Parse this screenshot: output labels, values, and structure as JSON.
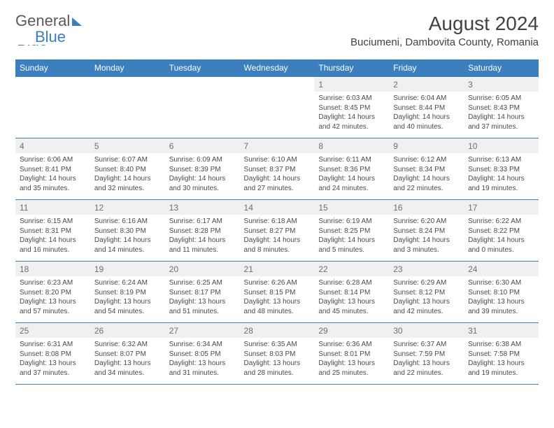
{
  "logo": {
    "part1": "General",
    "part2": "Blue"
  },
  "header": {
    "month_title": "August 2024",
    "location": "Buciumeni, Dambovita County, Romania"
  },
  "colors": {
    "accent": "#3b7fbf",
    "header_text": "#ffffff",
    "daynum_bg": "#f0f0f0",
    "daynum_text": "#6f6f6f",
    "body_text": "#4a4a4a",
    "border": "#3b7fbf"
  },
  "weekdays": [
    "Sunday",
    "Monday",
    "Tuesday",
    "Wednesday",
    "Thursday",
    "Friday",
    "Saturday"
  ],
  "weeks": [
    [
      null,
      null,
      null,
      null,
      {
        "num": "1",
        "sunrise": "Sunrise: 6:03 AM",
        "sunset": "Sunset: 8:45 PM",
        "daylight": "Daylight: 14 hours and 42 minutes."
      },
      {
        "num": "2",
        "sunrise": "Sunrise: 6:04 AM",
        "sunset": "Sunset: 8:44 PM",
        "daylight": "Daylight: 14 hours and 40 minutes."
      },
      {
        "num": "3",
        "sunrise": "Sunrise: 6:05 AM",
        "sunset": "Sunset: 8:43 PM",
        "daylight": "Daylight: 14 hours and 37 minutes."
      }
    ],
    [
      {
        "num": "4",
        "sunrise": "Sunrise: 6:06 AM",
        "sunset": "Sunset: 8:41 PM",
        "daylight": "Daylight: 14 hours and 35 minutes."
      },
      {
        "num": "5",
        "sunrise": "Sunrise: 6:07 AM",
        "sunset": "Sunset: 8:40 PM",
        "daylight": "Daylight: 14 hours and 32 minutes."
      },
      {
        "num": "6",
        "sunrise": "Sunrise: 6:09 AM",
        "sunset": "Sunset: 8:39 PM",
        "daylight": "Daylight: 14 hours and 30 minutes."
      },
      {
        "num": "7",
        "sunrise": "Sunrise: 6:10 AM",
        "sunset": "Sunset: 8:37 PM",
        "daylight": "Daylight: 14 hours and 27 minutes."
      },
      {
        "num": "8",
        "sunrise": "Sunrise: 6:11 AM",
        "sunset": "Sunset: 8:36 PM",
        "daylight": "Daylight: 14 hours and 24 minutes."
      },
      {
        "num": "9",
        "sunrise": "Sunrise: 6:12 AM",
        "sunset": "Sunset: 8:34 PM",
        "daylight": "Daylight: 14 hours and 22 minutes."
      },
      {
        "num": "10",
        "sunrise": "Sunrise: 6:13 AM",
        "sunset": "Sunset: 8:33 PM",
        "daylight": "Daylight: 14 hours and 19 minutes."
      }
    ],
    [
      {
        "num": "11",
        "sunrise": "Sunrise: 6:15 AM",
        "sunset": "Sunset: 8:31 PM",
        "daylight": "Daylight: 14 hours and 16 minutes."
      },
      {
        "num": "12",
        "sunrise": "Sunrise: 6:16 AM",
        "sunset": "Sunset: 8:30 PM",
        "daylight": "Daylight: 14 hours and 14 minutes."
      },
      {
        "num": "13",
        "sunrise": "Sunrise: 6:17 AM",
        "sunset": "Sunset: 8:28 PM",
        "daylight": "Daylight: 14 hours and 11 minutes."
      },
      {
        "num": "14",
        "sunrise": "Sunrise: 6:18 AM",
        "sunset": "Sunset: 8:27 PM",
        "daylight": "Daylight: 14 hours and 8 minutes."
      },
      {
        "num": "15",
        "sunrise": "Sunrise: 6:19 AM",
        "sunset": "Sunset: 8:25 PM",
        "daylight": "Daylight: 14 hours and 5 minutes."
      },
      {
        "num": "16",
        "sunrise": "Sunrise: 6:20 AM",
        "sunset": "Sunset: 8:24 PM",
        "daylight": "Daylight: 14 hours and 3 minutes."
      },
      {
        "num": "17",
        "sunrise": "Sunrise: 6:22 AM",
        "sunset": "Sunset: 8:22 PM",
        "daylight": "Daylight: 14 hours and 0 minutes."
      }
    ],
    [
      {
        "num": "18",
        "sunrise": "Sunrise: 6:23 AM",
        "sunset": "Sunset: 8:20 PM",
        "daylight": "Daylight: 13 hours and 57 minutes."
      },
      {
        "num": "19",
        "sunrise": "Sunrise: 6:24 AM",
        "sunset": "Sunset: 8:19 PM",
        "daylight": "Daylight: 13 hours and 54 minutes."
      },
      {
        "num": "20",
        "sunrise": "Sunrise: 6:25 AM",
        "sunset": "Sunset: 8:17 PM",
        "daylight": "Daylight: 13 hours and 51 minutes."
      },
      {
        "num": "21",
        "sunrise": "Sunrise: 6:26 AM",
        "sunset": "Sunset: 8:15 PM",
        "daylight": "Daylight: 13 hours and 48 minutes."
      },
      {
        "num": "22",
        "sunrise": "Sunrise: 6:28 AM",
        "sunset": "Sunset: 8:14 PM",
        "daylight": "Daylight: 13 hours and 45 minutes."
      },
      {
        "num": "23",
        "sunrise": "Sunrise: 6:29 AM",
        "sunset": "Sunset: 8:12 PM",
        "daylight": "Daylight: 13 hours and 42 minutes."
      },
      {
        "num": "24",
        "sunrise": "Sunrise: 6:30 AM",
        "sunset": "Sunset: 8:10 PM",
        "daylight": "Daylight: 13 hours and 39 minutes."
      }
    ],
    [
      {
        "num": "25",
        "sunrise": "Sunrise: 6:31 AM",
        "sunset": "Sunset: 8:08 PM",
        "daylight": "Daylight: 13 hours and 37 minutes."
      },
      {
        "num": "26",
        "sunrise": "Sunrise: 6:32 AM",
        "sunset": "Sunset: 8:07 PM",
        "daylight": "Daylight: 13 hours and 34 minutes."
      },
      {
        "num": "27",
        "sunrise": "Sunrise: 6:34 AM",
        "sunset": "Sunset: 8:05 PM",
        "daylight": "Daylight: 13 hours and 31 minutes."
      },
      {
        "num": "28",
        "sunrise": "Sunrise: 6:35 AM",
        "sunset": "Sunset: 8:03 PM",
        "daylight": "Daylight: 13 hours and 28 minutes."
      },
      {
        "num": "29",
        "sunrise": "Sunrise: 6:36 AM",
        "sunset": "Sunset: 8:01 PM",
        "daylight": "Daylight: 13 hours and 25 minutes."
      },
      {
        "num": "30",
        "sunrise": "Sunrise: 6:37 AM",
        "sunset": "Sunset: 7:59 PM",
        "daylight": "Daylight: 13 hours and 22 minutes."
      },
      {
        "num": "31",
        "sunrise": "Sunrise: 6:38 AM",
        "sunset": "Sunset: 7:58 PM",
        "daylight": "Daylight: 13 hours and 19 minutes."
      }
    ]
  ]
}
